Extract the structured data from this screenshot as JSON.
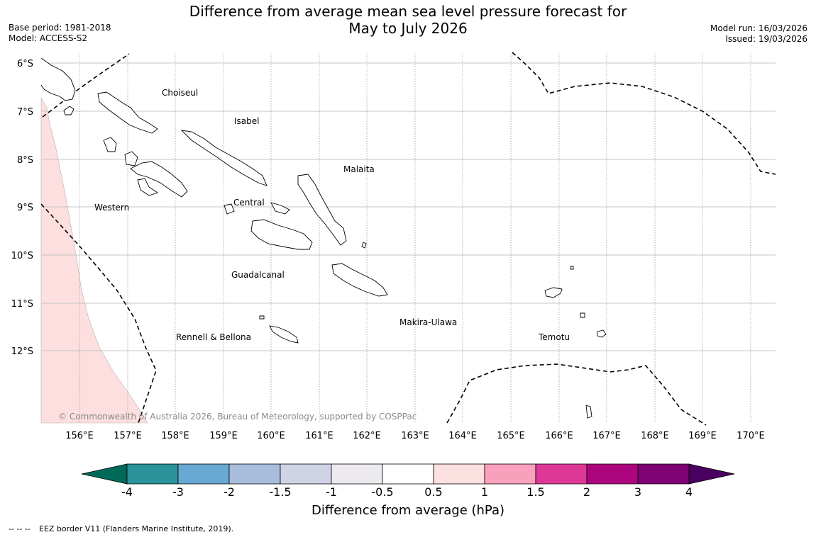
{
  "header": {
    "title_line1": "Difference from average mean sea level pressure forecast for",
    "title_line2": "May to July 2026",
    "base_period": "Base period: 1981-2018",
    "model": "Model: ACCESS-S2",
    "model_run": "Model run: 16/03/2026",
    "issued": "Issued: 19/03/2026"
  },
  "map": {
    "lat_labels": [
      "6°S",
      "7°S",
      "8°S",
      "9°S",
      "10°S",
      "11°S",
      "12°S"
    ],
    "lon_labels": [
      "156°E",
      "157°E",
      "158°E",
      "159°E",
      "160°E",
      "161°E",
      "162°E",
      "163°E",
      "164°E",
      "165°E",
      "166°E",
      "167°E",
      "168°E",
      "169°E",
      "170°E"
    ],
    "regions": [
      "Choiseul",
      "Isabel",
      "Malaita",
      "Western",
      "Central",
      "Guadalcanal",
      "Makira-Ulawa",
      "Rennell & Bellona",
      "Temotu"
    ],
    "copyright": "© Commonwealth of Australia 2026, Bureau of Meteorology, supported by COSPPac",
    "anomaly_fill_color": "#fddfdf"
  },
  "colorbar": {
    "title": "Difference from average (hPa)",
    "ticks": [
      "-4",
      "-3",
      "-2",
      "-1.5",
      "-1",
      "-0.5",
      "0.5",
      "1",
      "1.5",
      "2",
      "3",
      "4"
    ],
    "colors": [
      "#006a5a",
      "#2a9298",
      "#68a8d2",
      "#a8bcdb",
      "#d0d2e6",
      "#eceaef",
      "#ffffff",
      "#fde0e0",
      "#f8a0bc",
      "#de3897",
      "#ad057e",
      "#7e0273",
      "#4a0060"
    ]
  },
  "legend": {
    "eez_line_symbol": "-- -- --",
    "eez_text": "EEZ border V11 (Flanders Marine Institute, 2019)."
  }
}
